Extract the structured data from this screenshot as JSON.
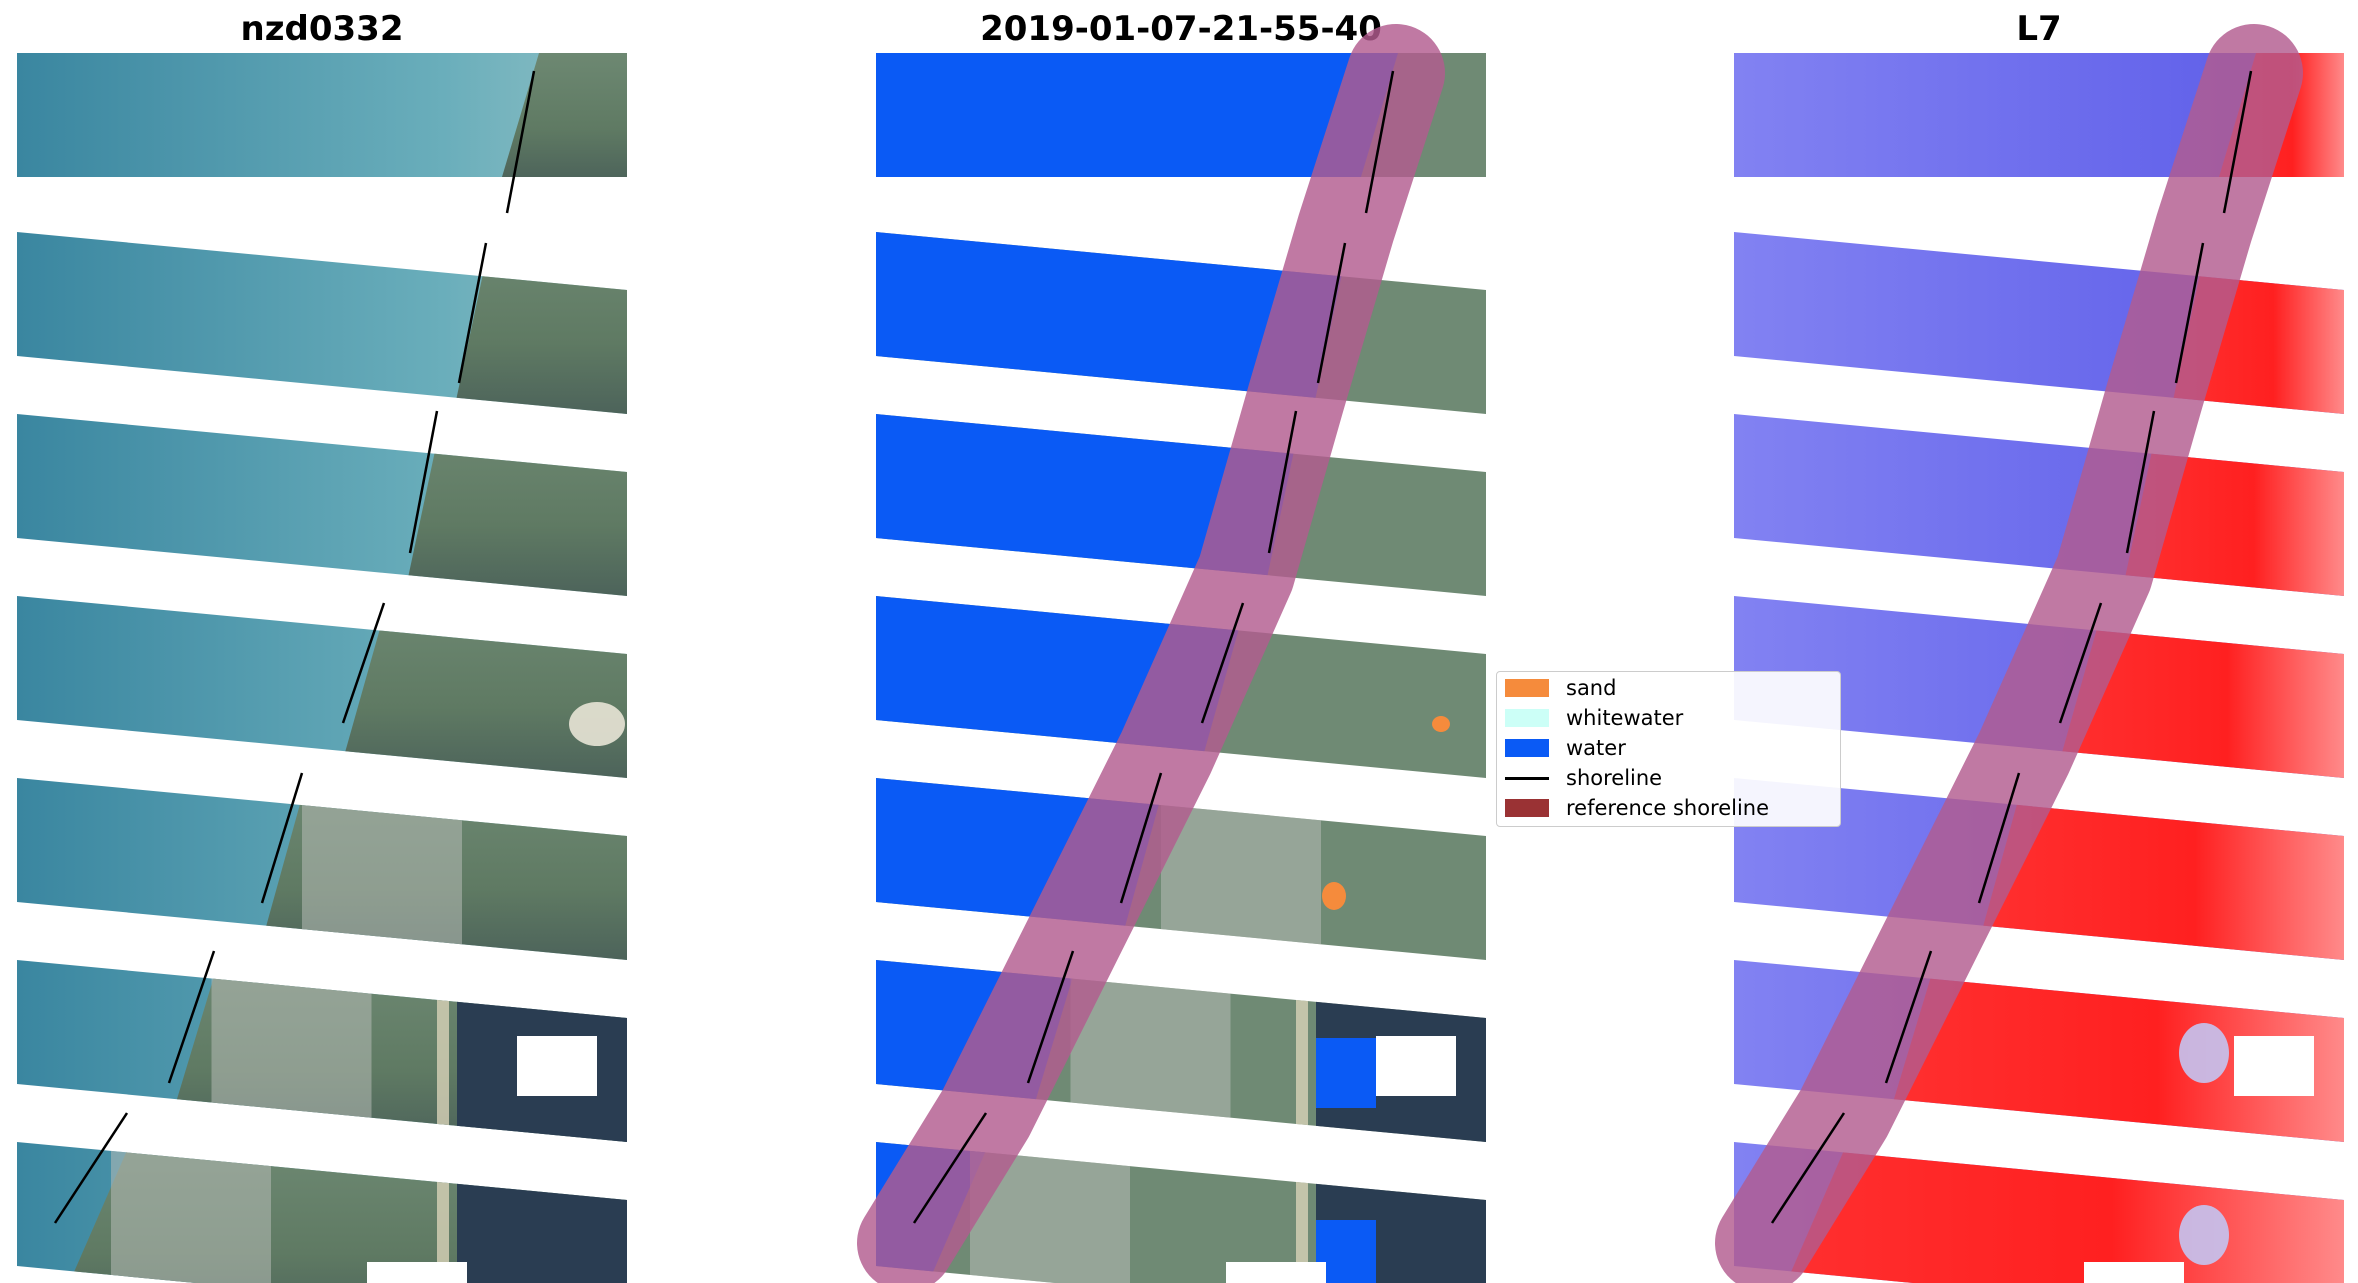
{
  "panels": [
    {
      "title": "nzd0332",
      "mode": "rgb"
    },
    {
      "title": "2019-01-07-21-55-40",
      "mode": "classified"
    },
    {
      "title": "L7",
      "mode": "index"
    }
  ],
  "legend": {
    "items": [
      {
        "label": "sand",
        "kind": "patch",
        "color": "#f58b3c"
      },
      {
        "label": "whitewater",
        "kind": "patch",
        "color": "#ccfff7"
      },
      {
        "label": "water",
        "kind": "patch",
        "color": "#0a5af5"
      },
      {
        "label": "shoreline",
        "kind": "line",
        "color": "#000000"
      },
      {
        "label": "reference shoreline",
        "kind": "patch",
        "color": "#9a3234"
      }
    ]
  },
  "colors": {
    "sea": "#3a86a0",
    "sea_shallow": "#6aaebb",
    "land": "#6f8a74",
    "land_dark": "#2a3d52",
    "urban": "#b7bcb6",
    "water_class": "#0a5af5",
    "sand_class": "#f58b3c",
    "reference_buffer": "#b25c8f",
    "index_blue": "#6e6ef0",
    "index_red": "#ff1e1e"
  }
}
